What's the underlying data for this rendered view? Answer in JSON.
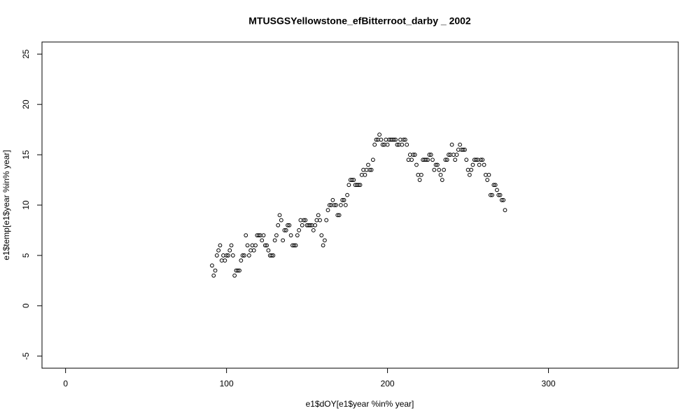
{
  "chart_data": {
    "type": "scatter",
    "title": "MTUSGSYellowstone_efBitterroot_darby _ 2002",
    "x_label": "e1$dOY[e1$year %in% year]",
    "y_label": "e1$temp[e1$year %in% year]",
    "color": "#000000",
    "xlim": [
      -14.64,
      380.64
    ],
    "ylim": [
      -6.2,
      26.2
    ],
    "xticks": [
      0,
      100,
      200,
      300
    ],
    "yticks": [
      -5,
      0,
      5,
      10,
      15,
      20,
      25
    ],
    "x": [
      91,
      92,
      93,
      94,
      95,
      96,
      97,
      98,
      99,
      100,
      101,
      102,
      103,
      104,
      105,
      106,
      107,
      108,
      109,
      110,
      111,
      112,
      113,
      114,
      115,
      116,
      117,
      118,
      119,
      120,
      121,
      122,
      123,
      124,
      125,
      126,
      127,
      128,
      129,
      130,
      131,
      132,
      133,
      134,
      135,
      136,
      137,
      138,
      139,
      140,
      141,
      142,
      143,
      144,
      145,
      146,
      147,
      148,
      149,
      150,
      151,
      152,
      153,
      154,
      155,
      156,
      157,
      158,
      159,
      160,
      161,
      162,
      163,
      164,
      165,
      166,
      167,
      168,
      169,
      170,
      171,
      172,
      173,
      174,
      175,
      176,
      177,
      178,
      179,
      180,
      181,
      182,
      183,
      184,
      185,
      186,
      187,
      188,
      189,
      190,
      191,
      192,
      193,
      194,
      195,
      196,
      197,
      198,
      199,
      200,
      201,
      202,
      203,
      204,
      205,
      206,
      207,
      208,
      209,
      210,
      211,
      212,
      213,
      214,
      215,
      216,
      217,
      218,
      219,
      220,
      221,
      222,
      223,
      224,
      225,
      226,
      227,
      228,
      229,
      230,
      231,
      232,
      233,
      234,
      235,
      236,
      237,
      238,
      239,
      240,
      241,
      242,
      243,
      244,
      245,
      246,
      247,
      248,
      249,
      250,
      251,
      252,
      253,
      254,
      255,
      256,
      257,
      258,
      259,
      260,
      261,
      262,
      263,
      264,
      265,
      266,
      267,
      268,
      269,
      270,
      271,
      272,
      273
    ],
    "values": [
      4,
      3,
      3.5,
      5,
      5.5,
      6,
      4.5,
      5,
      4.5,
      5,
      5,
      5.5,
      6,
      5,
      3,
      3.5,
      3.5,
      3.5,
      4.5,
      5,
      5,
      7,
      6,
      5,
      5.5,
      6,
      5.5,
      6,
      7,
      7,
      7,
      6.5,
      7,
      6,
      6,
      5.5,
      5,
      5,
      5,
      6.5,
      7,
      8,
      9,
      8.5,
      6.5,
      7.5,
      7.5,
      8,
      8,
      7,
      6,
      6,
      6,
      7,
      7.5,
      8.5,
      8,
      8.5,
      8.5,
      8,
      8,
      8,
      8,
      7.5,
      8,
      8.5,
      9,
      8.5,
      7,
      6,
      6.5,
      8.5,
      9.5,
      10,
      10,
      10.5,
      10,
      10,
      9,
      9,
      10,
      10.5,
      10.5,
      10,
      11,
      12,
      12.5,
      12.5,
      12.5,
      12,
      12,
      12,
      12,
      13,
      13.5,
      13,
      13.5,
      14,
      13.5,
      13.5,
      14.5,
      16,
      16.5,
      16.5,
      17,
      16.5,
      16,
      16,
      16.5,
      16,
      16.5,
      16.5,
      16.5,
      16.5,
      16.5,
      16,
      16,
      16.5,
      16,
      16.5,
      16.5,
      16,
      14.5,
      15,
      14.5,
      15,
      15,
      14,
      13,
      12.5,
      13,
      14.5,
      14.5,
      14.5,
      14.5,
      15,
      15,
      14.5,
      13.5,
      14,
      14,
      13.5,
      13,
      12.5,
      13.5,
      14.5,
      14.5,
      15,
      15,
      16,
      15,
      14.5,
      15,
      15.5,
      16,
      15.5,
      15.5,
      15.5,
      14.5,
      13.5,
      13,
      13.5,
      14,
      14.5,
      14.5,
      14.5,
      14,
      14.5,
      14.5,
      14,
      13,
      12.5,
      13,
      11,
      11,
      12,
      12,
      11.5,
      11,
      11,
      10.5,
      10.5,
      9.5
    ]
  }
}
